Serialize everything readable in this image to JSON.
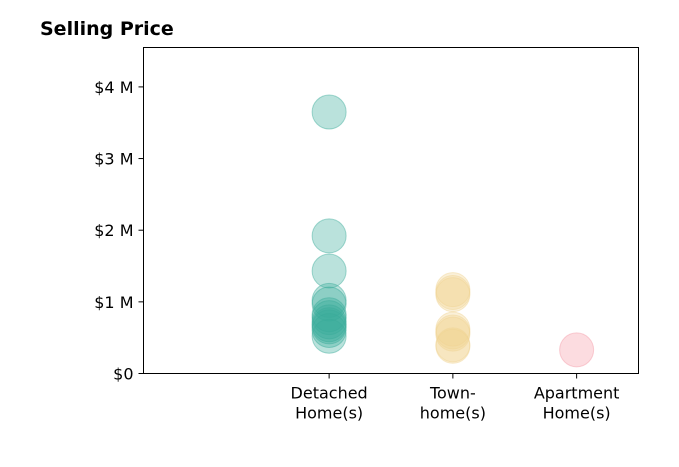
{
  "chart_data": {
    "type": "scatter",
    "title": "Selling Price",
    "xlabel": "",
    "ylabel": "",
    "ylim": [
      0,
      4.55
    ],
    "y_unit": "M",
    "yticks": [
      {
        "value": 0,
        "label": "$0"
      },
      {
        "value": 1,
        "label": "$1 M"
      },
      {
        "value": 2,
        "label": "$2 M"
      },
      {
        "value": 3,
        "label": "$3 M"
      },
      {
        "value": 4,
        "label": "$4 M"
      }
    ],
    "categories": [
      {
        "lines": [
          "Detached",
          "Home(s)"
        ]
      },
      {
        "lines": [
          "Town-",
          "home(s)"
        ]
      },
      {
        "lines": [
          "Apartment",
          "Home(s)"
        ]
      }
    ],
    "xlim": [
      -0.5,
      3.5
    ],
    "grid": false,
    "series": [
      {
        "category_index": 0,
        "color": "#3aab9a",
        "values": [
          3.65,
          1.92,
          1.43,
          1.02,
          0.97,
          0.82,
          0.78,
          0.72,
          0.68,
          0.65,
          0.6,
          0.52
        ]
      },
      {
        "category_index": 1,
        "color": "#f0d391",
        "values": [
          1.17,
          1.13,
          1.1,
          0.62,
          0.58,
          0.55,
          0.4,
          0.38
        ]
      },
      {
        "category_index": 2,
        "color": "#f59aa6",
        "values": [
          0.33
        ]
      }
    ]
  }
}
